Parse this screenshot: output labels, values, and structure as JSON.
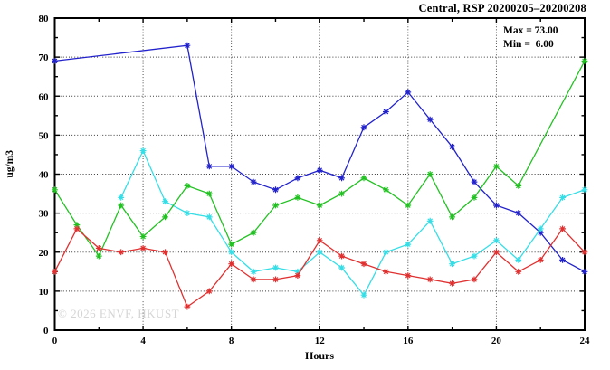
{
  "title": "Central, RSP 20200205–20200208",
  "annotations": {
    "max_label": "Max = 73.00",
    "min_label": "Min =  6.00"
  },
  "watermark": "© 2026 ENVF, HKUST",
  "chart_data": {
    "type": "line",
    "title": "Central, RSP 20200205–20200208",
    "xlabel": "Hours",
    "ylabel": "ug/m3",
    "xlim": [
      0,
      24
    ],
    "ylim": [
      0,
      80
    ],
    "xticks": [
      0,
      4,
      8,
      12,
      16,
      20,
      24
    ],
    "yticks": [
      0,
      10,
      20,
      30,
      40,
      50,
      60,
      70,
      80
    ],
    "x_minor_tick_step": 2,
    "y_minor_tick_step": 5,
    "grid": true,
    "legend_position": "none",
    "marker": "star",
    "stat_max": 73.0,
    "stat_min": 6.0,
    "x": [
      0,
      1,
      2,
      3,
      4,
      5,
      6,
      7,
      8,
      9,
      10,
      11,
      12,
      13,
      14,
      15,
      16,
      17,
      18,
      19,
      20,
      21,
      22,
      23,
      24
    ],
    "series": [
      {
        "name": "blue",
        "color": "#2222cc",
        "values": [
          69,
          null,
          null,
          null,
          null,
          null,
          73,
          42,
          42,
          38,
          36,
          39,
          41,
          39,
          52,
          56,
          61,
          54,
          47,
          38,
          32,
          30,
          25,
          18,
          15
        ]
      },
      {
        "name": "cyan",
        "color": "#35dee6",
        "values": [
          null,
          null,
          null,
          34,
          46,
          33,
          30,
          29,
          20,
          15,
          16,
          15,
          20,
          16,
          9,
          20,
          22,
          28,
          17,
          19,
          23,
          18,
          26,
          34,
          36
        ]
      },
      {
        "name": "green",
        "color": "#22c122",
        "values": [
          36,
          27,
          19,
          32,
          24,
          29,
          37,
          35,
          22,
          25,
          32,
          34,
          32,
          35,
          39,
          36,
          32,
          40,
          29,
          34,
          42,
          37,
          null,
          null,
          69
        ]
      },
      {
        "name": "red",
        "color": "#e03030",
        "values": [
          15,
          26,
          21,
          20,
          21,
          20,
          6,
          10,
          17,
          13,
          13,
          14,
          23,
          19,
          17,
          15,
          14,
          13,
          12,
          13,
          20,
          15,
          18,
          26,
          20
        ]
      }
    ]
  }
}
